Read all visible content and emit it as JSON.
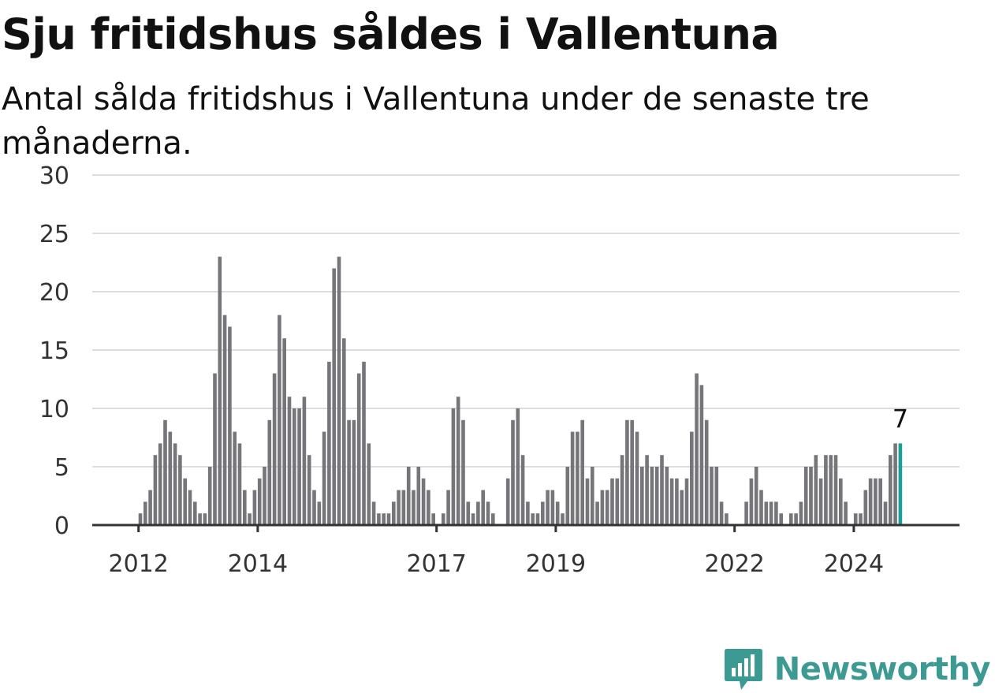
{
  "title": "Sju fritidshus såldes i Vallentuna",
  "subtitle": "Antal sålda fritidshus i Vallentuna under de senaste tre månaderna.",
  "brand": {
    "name": "Newsworthy",
    "icon": "newsworthy-logo-icon",
    "color": "#3d9a93"
  },
  "colors": {
    "bar": "#75757a",
    "highlight": "#1a9e96",
    "grid": "#dddddd",
    "axis": "#333333"
  },
  "chart_data": {
    "type": "bar",
    "title": "Sju fritidshus såldes i Vallentuna",
    "subtitle": "Antal sålda fritidshus i Vallentuna under de senaste tre månaderna.",
    "xlabel": "",
    "ylabel": "",
    "ylim": [
      0,
      30
    ],
    "yticks": [
      "0",
      "5",
      "10",
      "15",
      "20",
      "25",
      "30"
    ],
    "xticks": [
      "2012",
      "2014",
      "2017",
      "2019",
      "2022",
      "2024"
    ],
    "grid": true,
    "x_start": "2011-04",
    "x_end": "2024-12",
    "highlight_last": true,
    "highlight_label": "7",
    "values": [
      0,
      0,
      0,
      0,
      0,
      0,
      0,
      0,
      0,
      1,
      2,
      3,
      6,
      7,
      9,
      8,
      7,
      6,
      4,
      3,
      2,
      1,
      1,
      5,
      13,
      23,
      18,
      17,
      8,
      7,
      3,
      1,
      3,
      4,
      5,
      9,
      13,
      18,
      16,
      11,
      10,
      10,
      11,
      6,
      3,
      2,
      8,
      14,
      22,
      23,
      16,
      9,
      9,
      13,
      14,
      7,
      2,
      1,
      1,
      1,
      2,
      3,
      3,
      5,
      3,
      5,
      4,
      3,
      1,
      0,
      1,
      3,
      10,
      11,
      9,
      2,
      1,
      2,
      3,
      2,
      1,
      0,
      0,
      4,
      9,
      10,
      6,
      2,
      1,
      1,
      2,
      3,
      3,
      2,
      1,
      5,
      8,
      8,
      9,
      4,
      5,
      2,
      3,
      3,
      4,
      4,
      6,
      9,
      9,
      8,
      5,
      6,
      5,
      5,
      6,
      5,
      4,
      4,
      3,
      4,
      8,
      13,
      12,
      9,
      5,
      5,
      2,
      1,
      0,
      0,
      0,
      2,
      4,
      5,
      3,
      2,
      2,
      2,
      1,
      0,
      1,
      1,
      2,
      5,
      5,
      6,
      4,
      6,
      6,
      6,
      4,
      2,
      0,
      1,
      1,
      3,
      4,
      4,
      4,
      2,
      6,
      7,
      7
    ]
  }
}
